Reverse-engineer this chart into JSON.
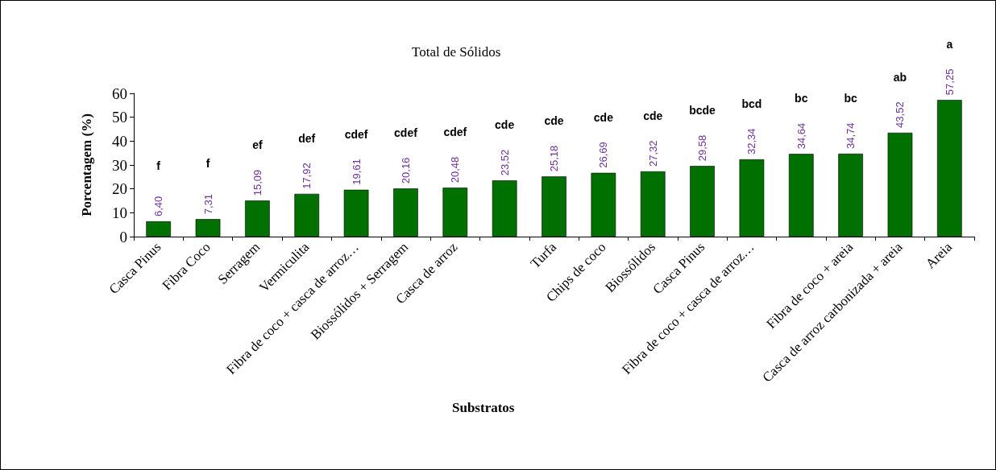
{
  "chart_data": {
    "type": "bar",
    "title": "Total de Sólidos",
    "xlabel": "Substratos",
    "ylabel": "Porcentagem (%)",
    "categories": [
      "Casca Pinus",
      "Fibra Coco",
      "Serragem",
      "Vermiculita",
      "Fibra de coco + casca de arroz…",
      "Biossólidos + Serragem",
      "Casca de arroz",
      null,
      "Turfa",
      "Chips de coco",
      "Biossólidos",
      "Casca Pinus",
      "Fibra de coco + casca de arroz…",
      null,
      "Fibra de coco + areia",
      "Casca de arroz carbonizada + areia",
      "Areia"
    ],
    "values": [
      6.4,
      7.31,
      15.09,
      17.92,
      19.61,
      20.16,
      20.48,
      23.52,
      25.18,
      26.69,
      27.32,
      29.58,
      32.34,
      34.64,
      34.74,
      43.52,
      57.25
    ],
    "value_labels": [
      "6,40",
      "7,31",
      "15,09",
      "17,92",
      "19,61",
      "20,16",
      "20,48",
      "23,52",
      "25,18",
      "26,69",
      "27,32",
      "29,58",
      "32,34",
      "34,64",
      "34,74",
      "43,52",
      "57,25"
    ],
    "color": "#007000",
    "annotations": [
      "f",
      "f",
      "ef",
      "def",
      "cdef",
      "cdef",
      "cdef",
      "cde",
      "cde",
      "cde",
      "cde",
      "bcde",
      "bcd",
      "bc",
      "bc",
      "ab",
      "a"
    ],
    "ylim": [
      0,
      60
    ],
    "yticks": [
      0,
      10,
      20,
      30,
      40,
      50,
      60
    ],
    "grid": false
  }
}
